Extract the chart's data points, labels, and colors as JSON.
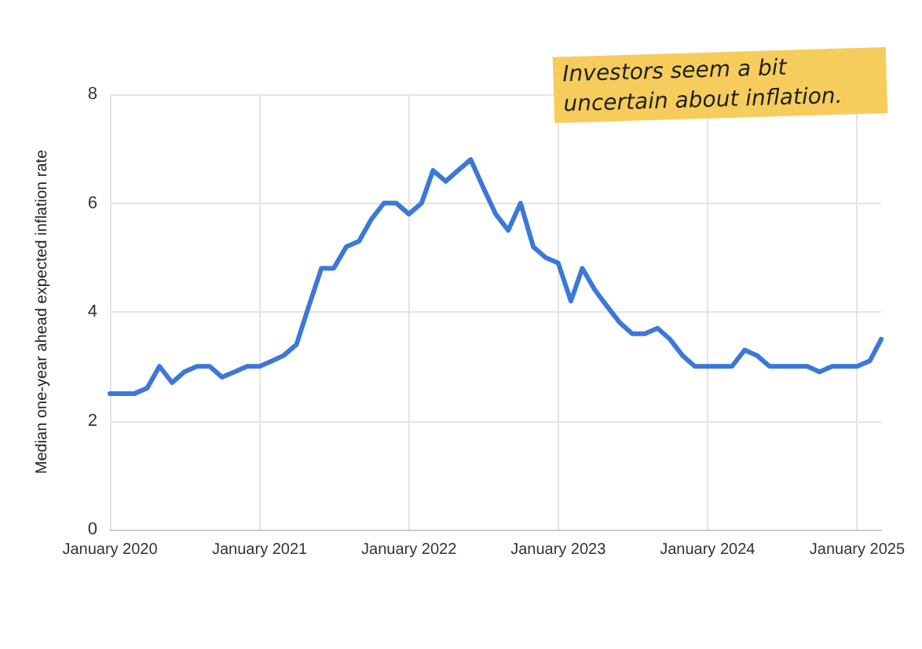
{
  "chart_data": {
    "type": "line",
    "ylabel": "Median one-year ahead expected inflation rate",
    "annotations": [
      "Investors seem a bit uncertain about inflation."
    ],
    "x": [
      "2020-01",
      "2020-02",
      "2020-03",
      "2020-04",
      "2020-05",
      "2020-06",
      "2020-07",
      "2020-08",
      "2020-09",
      "2020-10",
      "2020-11",
      "2020-12",
      "2021-01",
      "2021-02",
      "2021-03",
      "2021-04",
      "2021-05",
      "2021-06",
      "2021-07",
      "2021-08",
      "2021-09",
      "2021-10",
      "2021-11",
      "2021-12",
      "2022-01",
      "2022-02",
      "2022-03",
      "2022-04",
      "2022-05",
      "2022-06",
      "2022-07",
      "2022-08",
      "2022-09",
      "2022-10",
      "2022-11",
      "2022-12",
      "2023-01",
      "2023-02",
      "2023-03",
      "2023-04",
      "2023-05",
      "2023-06",
      "2023-07",
      "2023-08",
      "2023-09",
      "2023-10",
      "2023-11",
      "2023-12",
      "2024-01",
      "2024-02",
      "2024-03",
      "2024-04",
      "2024-05",
      "2024-06",
      "2024-07",
      "2024-08",
      "2024-09",
      "2024-10",
      "2024-11",
      "2024-12",
      "2025-01",
      "2025-02",
      "2025-03"
    ],
    "series": [
      {
        "color": "#3b78d8",
        "values": [
          2.5,
          2.5,
          2.5,
          2.6,
          3.0,
          2.7,
          2.9,
          3.0,
          3.0,
          2.8,
          2.9,
          3.0,
          3.0,
          3.1,
          3.2,
          3.4,
          4.1,
          4.8,
          4.8,
          5.2,
          5.3,
          5.7,
          6.0,
          6.0,
          5.8,
          6.0,
          6.6,
          6.4,
          6.6,
          6.8,
          6.3,
          5.8,
          5.5,
          6.0,
          5.2,
          5.0,
          4.9,
          4.2,
          4.8,
          4.4,
          4.1,
          3.8,
          3.6,
          3.6,
          3.7,
          3.5,
          3.2,
          3.0,
          3.0,
          3.0,
          3.0,
          3.3,
          3.2,
          3.0,
          3.0,
          3.0,
          3.0,
          2.9,
          3.0,
          3.0,
          3.0,
          3.1,
          3.5
        ]
      }
    ],
    "xlim": [
      "2020-01",
      "2025-03"
    ],
    "xticks": [
      {
        "value": "2020-01",
        "label": "January 2020"
      },
      {
        "value": "2021-01",
        "label": "January 2021"
      },
      {
        "value": "2022-01",
        "label": "January 2022"
      },
      {
        "value": "2023-01",
        "label": "January 2023"
      },
      {
        "value": "2024-01",
        "label": "January 2024"
      },
      {
        "value": "2025-01",
        "label": "January 2025"
      }
    ],
    "ylim": [
      0,
      8
    ],
    "yticks": [
      0,
      2,
      4,
      6,
      8
    ],
    "grid": true,
    "marker": "none",
    "line_style": "solid"
  }
}
